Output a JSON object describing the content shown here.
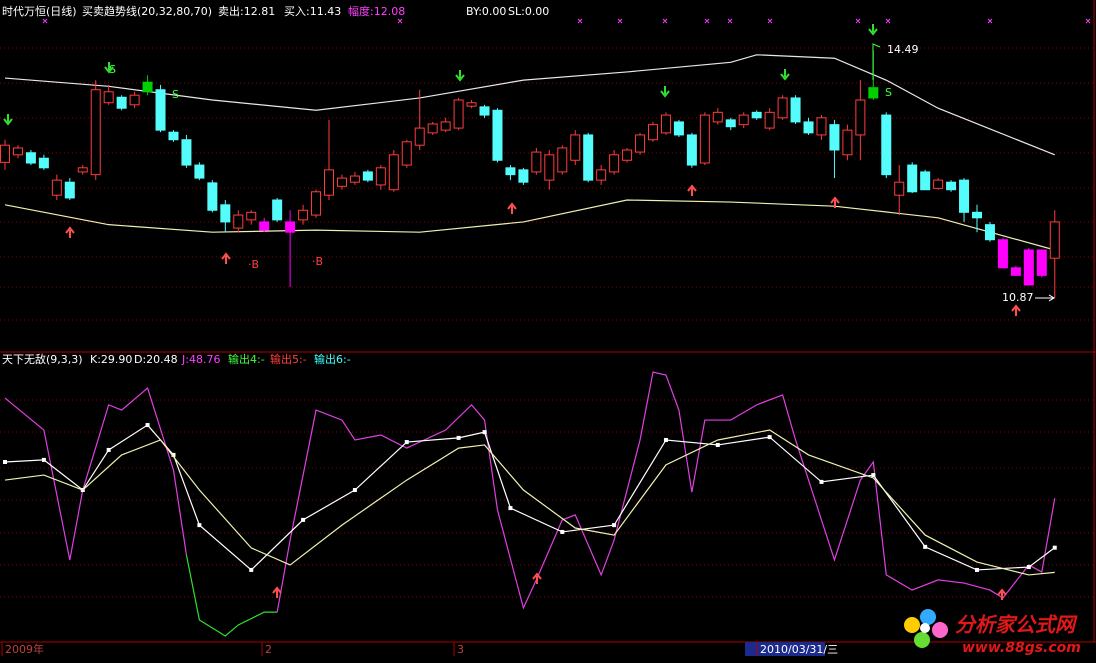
{
  "chart_data": [
    {
      "type": "candlestick",
      "header": [
        "时代万恒(日线)",
        "买卖趋势线(20,32,80,70)",
        "卖出:12.81",
        "买入:11.43",
        "幅度:12.08",
        "BY:0.00",
        "SL:0.00"
      ],
      "header_colors": [
        "#ffffff",
        "#ffffff",
        "#ffffff",
        "#ffffff",
        "#ff40ff",
        "#ffffff",
        "#ffffff"
      ],
      "ylim": [
        10.11,
        15.22
      ],
      "hollow_up": true,
      "up_color": "#ff3c3c",
      "open": [
        12.85,
        12.96,
        12.99,
        12.91,
        12.37,
        12.56,
        12.71,
        12.67,
        13.72,
        13.8,
        13.69,
        13.88,
        13.91,
        13.29,
        13.18,
        12.81,
        12.55,
        12.23,
        11.89,
        12.01,
        11.98,
        12.3,
        11.98,
        12.01,
        12.08,
        12.37,
        12.5,
        12.56,
        12.71,
        12.52,
        12.45,
        12.81,
        13.1,
        13.28,
        13.32,
        13.35,
        13.67,
        13.66,
        13.61,
        12.77,
        12.74,
        12.71,
        12.59,
        12.71,
        12.88,
        13.25,
        12.59,
        12.71,
        12.88,
        13.0,
        13.18,
        13.28,
        13.44,
        13.25,
        12.84,
        13.44,
        13.47,
        13.4,
        13.58,
        13.35,
        13.5,
        13.79,
        13.44,
        13.25,
        13.4,
        12.96,
        13.25,
        13.79,
        13.54,
        12.37,
        12.81,
        12.71,
        12.47,
        12.56,
        12.59,
        12.12,
        11.94,
        11.72,
        11.31,
        11.57,
        11.2,
        11.45
      ],
      "high": [
        13.18,
        13.1,
        13.03,
        12.96,
        12.67,
        12.62,
        12.81,
        14.05,
        13.98,
        13.83,
        13.88,
        14.12,
        13.98,
        13.32,
        13.25,
        12.85,
        12.59,
        12.3,
        12.15,
        12.15,
        12.04,
        12.33,
        12.15,
        12.23,
        12.45,
        13.47,
        12.67,
        12.71,
        12.74,
        12.81,
        13.03,
        13.18,
        13.91,
        13.44,
        13.5,
        13.79,
        13.76,
        13.69,
        13.64,
        12.81,
        12.77,
        13.06,
        13.03,
        13.1,
        13.32,
        13.28,
        12.81,
        13.03,
        13.06,
        13.28,
        13.44,
        13.58,
        13.47,
        13.28,
        13.58,
        13.64,
        13.5,
        13.58,
        13.61,
        13.64,
        13.83,
        13.83,
        13.5,
        13.54,
        13.47,
        13.4,
        14.05,
        14.49,
        13.58,
        12.81,
        12.85,
        12.74,
        12.62,
        12.59,
        12.62,
        12.23,
        11.98,
        11.75,
        11.34,
        11.6,
        11.57,
        12.15
      ],
      "low": [
        12.74,
        12.91,
        12.81,
        12.74,
        12.3,
        12.3,
        12.67,
        12.59,
        13.69,
        13.61,
        13.64,
        13.83,
        13.29,
        13.15,
        12.77,
        12.59,
        12.12,
        11.83,
        11.83,
        11.94,
        11.83,
        11.98,
        11.03,
        11.94,
        12.04,
        12.3,
        12.45,
        12.52,
        12.56,
        12.45,
        12.42,
        12.77,
        13.03,
        13.25,
        13.29,
        13.32,
        13.64,
        13.5,
        12.85,
        12.59,
        12.52,
        12.67,
        12.45,
        12.67,
        12.81,
        12.56,
        12.52,
        12.67,
        12.85,
        12.96,
        13.15,
        13.25,
        13.22,
        12.77,
        12.81,
        13.4,
        13.32,
        13.35,
        13.47,
        13.32,
        13.47,
        13.41,
        13.25,
        13.18,
        12.62,
        12.88,
        12.88,
        13.76,
        12.62,
        12.08,
        12.4,
        12.45,
        12.45,
        12.42,
        11.98,
        11.83,
        11.69,
        11.31,
        11.2,
        11.06,
        11.17,
        10.87
      ],
      "close": [
        13.1,
        13.06,
        12.84,
        12.77,
        12.59,
        12.33,
        12.77,
        13.91,
        13.88,
        13.64,
        13.83,
        14.02,
        13.32,
        13.18,
        12.81,
        12.62,
        12.15,
        11.98,
        12.08,
        12.12,
        11.86,
        12.01,
        11.83,
        12.15,
        12.42,
        12.74,
        12.62,
        12.65,
        12.59,
        12.77,
        12.96,
        13.15,
        13.35,
        13.41,
        13.44,
        13.76,
        13.72,
        13.54,
        12.88,
        12.67,
        12.56,
        13.0,
        12.96,
        13.06,
        13.25,
        12.59,
        12.74,
        12.96,
        13.03,
        13.25,
        13.4,
        13.54,
        13.25,
        12.81,
        13.54,
        13.58,
        13.37,
        13.54,
        13.5,
        13.58,
        13.79,
        13.44,
        13.28,
        13.5,
        13.03,
        13.32,
        13.76,
        13.94,
        12.67,
        12.56,
        12.42,
        12.45,
        12.59,
        12.45,
        12.12,
        12.04,
        11.72,
        11.31,
        11.2,
        11.06,
        11.57,
        11.98
      ],
      "colors": [
        "#ff3c3c",
        "#ff3c3c",
        "#54fcfc",
        "#54fcfc",
        "#ff3c3c",
        "#54fcfc",
        "#ff3c3c",
        "#ff3c3c",
        "#ff3c3c",
        "#54fcfc",
        "#ff3c3c",
        "#00d000",
        "#54fcfc",
        "#54fcfc",
        "#54fcfc",
        "#54fcfc",
        "#54fcfc",
        "#54fcfc",
        "#ff3c3c",
        "#ff3c3c",
        "#ff00ff",
        "#54fcfc",
        "#ff00ff",
        "#ff3c3c",
        "#ff3c3c",
        "#ff3c3c",
        "#ff3c3c",
        "#ff3c3c",
        "#54fcfc",
        "#ff3c3c",
        "#ff3c3c",
        "#ff3c3c",
        "#ff3c3c",
        "#ff3c3c",
        "#ff3c3c",
        "#ff3c3c",
        "#ff3c3c",
        "#54fcfc",
        "#54fcfc",
        "#54fcfc",
        "#54fcfc",
        "#ff3c3c",
        "#ff3c3c",
        "#ff3c3c",
        "#ff3c3c",
        "#54fcfc",
        "#ff3c3c",
        "#ff3c3c",
        "#ff3c3c",
        "#ff3c3c",
        "#ff3c3c",
        "#ff3c3c",
        "#54fcfc",
        "#54fcfc",
        "#ff3c3c",
        "#ff3c3c",
        "#54fcfc",
        "#ff3c3c",
        "#54fcfc",
        "#ff3c3c",
        "#ff3c3c",
        "#54fcfc",
        "#54fcfc",
        "#ff3c3c",
        "#54fcfc",
        "#ff3c3c",
        "#ff3c3c",
        "#00d000",
        "#54fcfc",
        "#ff3c3c",
        "#54fcfc",
        "#54fcfc",
        "#ff3c3c",
        "#54fcfc",
        "#54fcfc",
        "#54fcfc",
        "#54fcfc",
        "#ff00ff",
        "#ff00ff",
        "#ff00ff",
        "#ff00ff",
        "#ff3c3c"
      ],
      "lines": [
        {
          "color": "#e8e8e8",
          "x": [
            0,
            8,
            16,
            24,
            32,
            40,
            48,
            56,
            58,
            64,
            68,
            72,
            81
          ],
          "values": [
            14.08,
            13.96,
            13.76,
            13.61,
            13.79,
            14.05,
            14.17,
            14.31,
            14.42,
            14.37,
            14.05,
            13.64,
            12.96
          ]
        },
        {
          "color": "#f0f0b0",
          "x": [
            0,
            8,
            16,
            24,
            32,
            40,
            48,
            56,
            64,
            72,
            81
          ],
          "values": [
            12.23,
            11.94,
            11.83,
            11.86,
            11.83,
            11.98,
            12.3,
            12.27,
            12.21,
            12.04,
            11.57
          ]
        }
      ],
      "annotations": [
        "S",
        "S",
        "S",
        "·B",
        "·B"
      ],
      "high_label": 14.49,
      "low_label": 10.87
    },
    {
      "type": "line",
      "header": [
        "天下无敌(9,3,3)",
        "K:29.90",
        "D:20.48",
        "J:48.76",
        "输出4:-",
        "输出5:-",
        "输出6:-"
      ],
      "header_colors": [
        "#ffffff",
        "#ffffff",
        "#ffffff",
        "#ff40ff",
        "#40ff40",
        "#ff4040",
        "#40ffff"
      ],
      "ylim": [
        0,
        100
      ],
      "series": [
        {
          "color": "#e040e0",
          "x": [
            0,
            3,
            5,
            6,
            8,
            9,
            11,
            13,
            14
          ],
          "values": [
            87.0,
            74.8,
            25.2,
            51.9,
            84.4,
            82.4,
            90.8,
            59.5,
            27.1
          ]
        },
        {
          "color": "#30e030",
          "x": [
            14,
            15,
            17,
            18,
            20,
            21
          ],
          "values": [
            27.1,
            2.3,
            -3.8,
            0.4,
            5.3,
            5.3
          ]
        },
        {
          "color": "#e040e0",
          "x": [
            21,
            22,
            24,
            26,
            27,
            29,
            31,
            34,
            36,
            37,
            38,
            40,
            41,
            43,
            44,
            46,
            47,
            49,
            50,
            51,
            52,
            53,
            54,
            56,
            58,
            60,
            61,
            64,
            66,
            67,
            68,
            70,
            72,
            74,
            76,
            77,
            79,
            80,
            81
          ],
          "values": [
            5.3,
            32.8,
            82.4,
            78.6,
            71.0,
            72.9,
            67.9,
            74.8,
            84.4,
            78.6,
            44.3,
            6.9,
            17.6,
            40.5,
            42.4,
            19.5,
            32.8,
            71.0,
            96.9,
            95.8,
            82.4,
            51.1,
            78.6,
            78.6,
            84.4,
            88.2,
            71.0,
            25.2,
            55.7,
            62.6,
            19.5,
            13.7,
            17.6,
            16.4,
            13.7,
            10.7,
            23.3,
            20.6,
            48.76
          ]
        },
        {
          "color": "#ffffff",
          "markers": true,
          "x": [
            0,
            3,
            6,
            8,
            11,
            13,
            15,
            19,
            23,
            27,
            31,
            35,
            37,
            39,
            43,
            47,
            51,
            55,
            59,
            63,
            67,
            71,
            75,
            79,
            81
          ],
          "values": [
            62.6,
            63.4,
            51.9,
            67.2,
            76.7,
            65.3,
            38.5,
            21.4,
            40.5,
            51.9,
            70.2,
            71.8,
            74.0,
            45.0,
            35.9,
            38.5,
            71.0,
            69.1,
            72.1,
            55.0,
            57.6,
            30.2,
            21.4,
            22.5,
            29.9
          ]
        },
        {
          "color": "#f0f0b0",
          "x": [
            0,
            3,
            6,
            9,
            12,
            15,
            19,
            22,
            26,
            31,
            35,
            37,
            40,
            44,
            47,
            51,
            55,
            59,
            62,
            67,
            71,
            75,
            79,
            81
          ],
          "values": [
            55.7,
            57.6,
            51.9,
            65.3,
            71.0,
            51.9,
            29.8,
            23.3,
            38.5,
            55.7,
            67.9,
            69.1,
            51.9,
            37.4,
            34.7,
            61.5,
            71.0,
            74.8,
            65.3,
            56.5,
            34.7,
            24.4,
            19.5,
            20.48
          ]
        }
      ]
    }
  ],
  "x_axis_labels": [
    "2009年",
    "2",
    "3",
    "2010/03/31/三"
  ],
  "watermark": {
    "title": "分析家公式网",
    "url": "www.88gs.com"
  }
}
